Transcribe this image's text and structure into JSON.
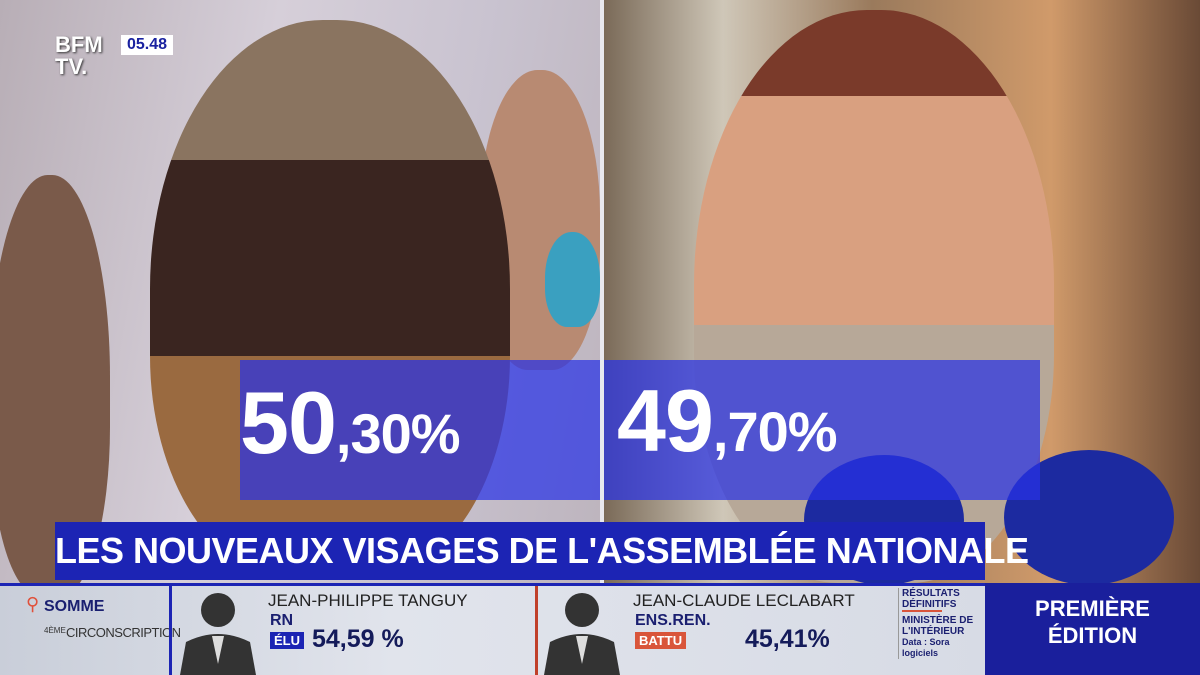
{
  "channel": {
    "logo": "BFM TV.",
    "time": "05.48"
  },
  "scores": {
    "left": {
      "main": "50",
      "decimals": ",30%"
    },
    "right": {
      "main": "49",
      "decimals": ",70%"
    }
  },
  "headline": "LES NOUVEAUX VISAGES DE L'ASSEMBLÉE NATIONALE",
  "location": {
    "icon": "map-pin-icon",
    "department": "SOMME",
    "district_ordinal": "4ÈME",
    "district": "CIRCONSCRIPTION"
  },
  "candidates": [
    {
      "name": "JEAN-PHILIPPE TANGUY",
      "party": "RN",
      "status": "ÉLU",
      "status_color": "#1c24b4",
      "score": "54,59 %"
    },
    {
      "name": "JEAN-CLAUDE LECLABART",
      "party": "ENS.REN.",
      "status": "BATTU",
      "status_color": "#d9553a",
      "score": "45,41%"
    }
  ],
  "source": {
    "line1": "RÉSULTATS",
    "line2": "DÉFINITIFS",
    "line3": "MINISTÈRE DE",
    "line4": "L'INTÉRIEUR",
    "line5": "Data : Sora logiciels"
  },
  "program": {
    "line1": "PREMIÈRE",
    "line2": "ÉDITION"
  }
}
